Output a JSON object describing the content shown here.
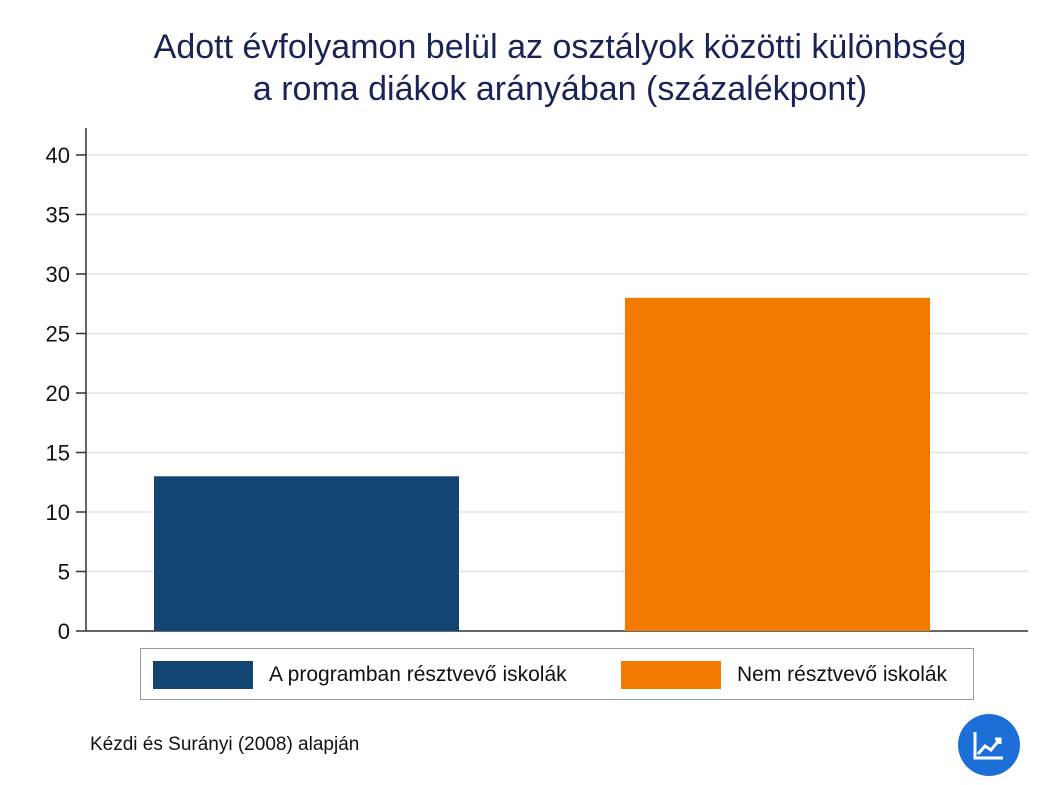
{
  "title_lines": [
    "Adott évfolyamon belül az osztályok közötti különbség",
    "a roma diákok arányában (százalékpont)"
  ],
  "source": "Kézdi és Surányi (2008) alapján",
  "logo_icon": "trend-chart-icon",
  "colors": {
    "title": "#1a2357",
    "grid": "#dce6ea",
    "axis": "#333333",
    "logo": "#1d6fd8"
  },
  "chart_data": {
    "type": "bar",
    "categories": [
      "A programban résztvevő iskolák",
      "Nem résztvevő iskolák"
    ],
    "values": [
      13,
      28
    ],
    "colors": [
      "#124572",
      "#f27a00"
    ],
    "ylim": [
      0,
      42
    ],
    "yticks": [
      "0",
      "5",
      "10",
      "15",
      "20",
      "25",
      "30",
      "35",
      "40"
    ],
    "grid": true,
    "legend_position": "bottom",
    "xlabel": "",
    "ylabel": ""
  }
}
